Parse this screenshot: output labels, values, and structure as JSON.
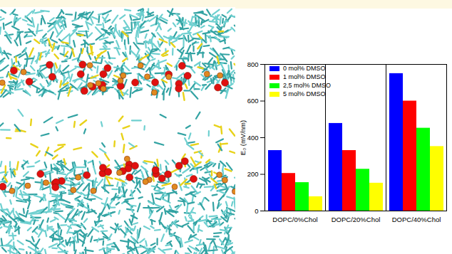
{
  "chart_data": {
    "type": "bar",
    "y_label": "E₀ (mV/nm)",
    "categories": [
      "DOPC/0%Chol",
      "DOPC/20%Chol",
      "DOPC/40%Chol"
    ],
    "series": [
      {
        "name": "0 mol% DMSO",
        "color": "#0000ff",
        "values": [
          330,
          478,
          750
        ]
      },
      {
        "name": "1 mol% DMSO",
        "color": "#ff0000",
        "values": [
          205,
          330,
          600
        ]
      },
      {
        "name": "2,5 mol% DMSO",
        "color": "#00ff00",
        "values": [
          155,
          228,
          452
        ]
      },
      {
        "name": "5 mol% DMSO",
        "color": "#ffff00",
        "values": [
          78,
          152,
          352
        ]
      }
    ],
    "ylim": [
      0,
      800
    ],
    "yticks": [
      0,
      200,
      400,
      600,
      800
    ],
    "legend": "top-left"
  }
}
